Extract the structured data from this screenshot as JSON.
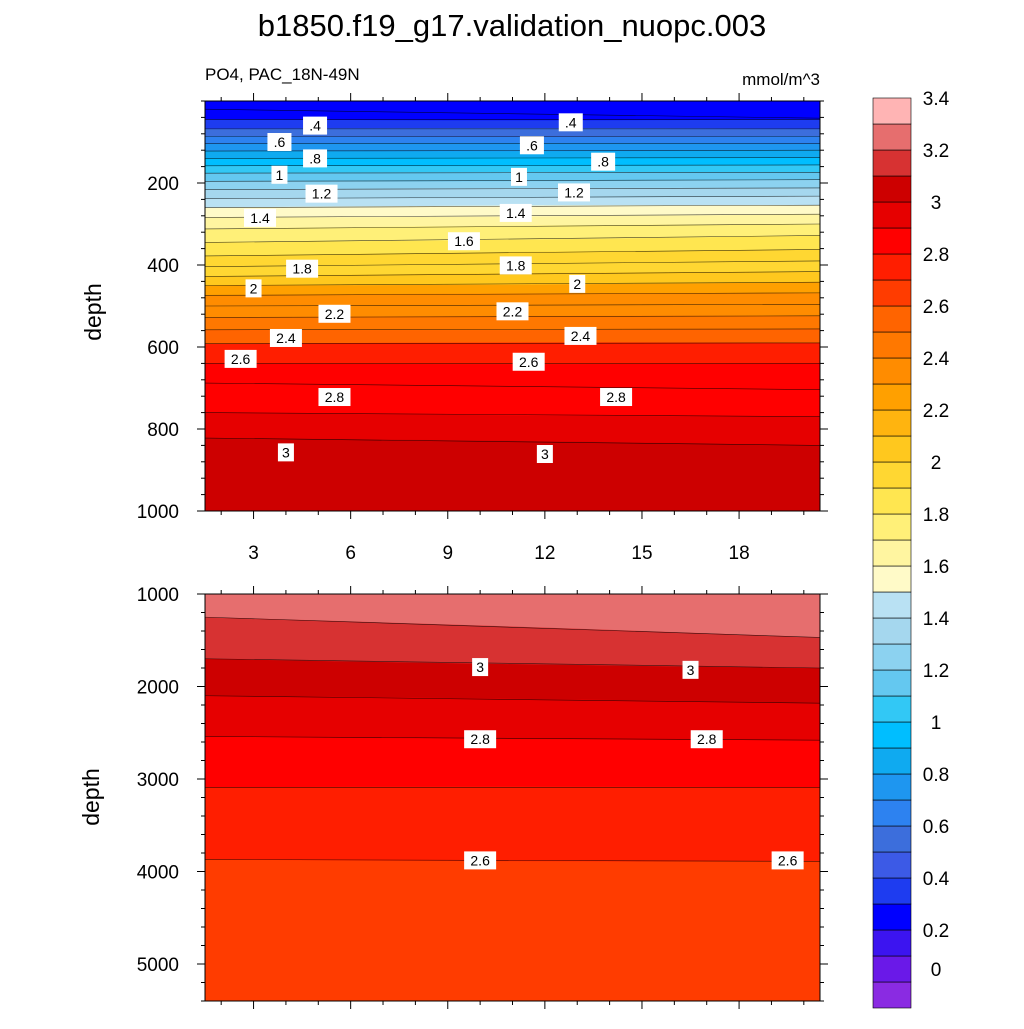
{
  "title": "b1850.f19_g17.validation_nuopc.003",
  "left_subtitle": "PO4, PAC_18N-49N",
  "right_subtitle": "mmol/m^3",
  "chart_data": [
    {
      "type": "heatmap",
      "panel": "upper",
      "title": "",
      "xlabel": "",
      "ylabel": "depth",
      "xlim": [
        1.5,
        20.5
      ],
      "ylim": [
        1000,
        0
      ],
      "x_ticks": [
        "3",
        "6",
        "9",
        "12",
        "15",
        "18"
      ],
      "x_tick_values": [
        3,
        6,
        9,
        12,
        15,
        18
      ],
      "y_ticks": [
        "200",
        "400",
        "600",
        "800",
        "1000"
      ],
      "y_tick_values": [
        200,
        400,
        600,
        800,
        1000
      ],
      "contour_interval": 0.1,
      "contour_depths": [
        {
          "level": 0.2,
          "left": 20,
          "right": 42
        },
        {
          "level": 0.3,
          "left": 45,
          "right": 45
        },
        {
          "level": 0.4,
          "left": 68,
          "right": 68
        },
        {
          "level": 0.5,
          "left": 86,
          "right": 86
        },
        {
          "level": 0.6,
          "left": 104,
          "right": 104
        },
        {
          "level": 0.7,
          "left": 122,
          "right": 120
        },
        {
          "level": 0.8,
          "left": 140,
          "right": 138
        },
        {
          "level": 0.9,
          "left": 158,
          "right": 156
        },
        {
          "level": 1.0,
          "left": 176,
          "right": 174
        },
        {
          "level": 1.1,
          "left": 196,
          "right": 192
        },
        {
          "level": 1.2,
          "left": 216,
          "right": 212
        },
        {
          "level": 1.3,
          "left": 238,
          "right": 232
        },
        {
          "level": 1.4,
          "left": 260,
          "right": 254
        },
        {
          "level": 1.5,
          "left": 284,
          "right": 276
        },
        {
          "level": 1.6,
          "left": 312,
          "right": 300
        },
        {
          "level": 1.7,
          "left": 345,
          "right": 328
        },
        {
          "level": 1.8,
          "left": 378,
          "right": 362
        },
        {
          "level": 1.9,
          "left": 404,
          "right": 390
        },
        {
          "level": 2.0,
          "left": 428,
          "right": 416
        },
        {
          "level": 2.1,
          "left": 450,
          "right": 442
        },
        {
          "level": 2.2,
          "left": 474,
          "right": 468
        },
        {
          "level": 2.3,
          "left": 500,
          "right": 496
        },
        {
          "level": 2.4,
          "left": 528,
          "right": 524
        },
        {
          "level": 2.5,
          "left": 558,
          "right": 556
        },
        {
          "level": 2.6,
          "left": 592,
          "right": 590
        },
        {
          "level": 2.7,
          "left": 640,
          "right": 640
        },
        {
          "level": 2.8,
          "left": 688,
          "right": 704
        },
        {
          "level": 2.9,
          "left": 760,
          "right": 770
        },
        {
          "level": 3.0,
          "left": 822,
          "right": 840
        }
      ],
      "contour_labels": [
        {
          "text": ".4",
          "x": 4.9,
          "y": 60
        },
        {
          "text": ".4",
          "x": 12.8,
          "y": 52
        },
        {
          "text": ".6",
          "x": 3.8,
          "y": 100
        },
        {
          "text": ".6",
          "x": 11.6,
          "y": 108
        },
        {
          "text": ".8",
          "x": 4.9,
          "y": 140
        },
        {
          "text": ".8",
          "x": 13.8,
          "y": 148
        },
        {
          "text": "1",
          "x": 3.8,
          "y": 180
        },
        {
          "text": "1",
          "x": 11.2,
          "y": 185
        },
        {
          "text": "1.2",
          "x": 5.1,
          "y": 226
        },
        {
          "text": "1.2",
          "x": 12.9,
          "y": 223
        },
        {
          "text": "1.4",
          "x": 3.2,
          "y": 285
        },
        {
          "text": "1.4",
          "x": 11.1,
          "y": 273
        },
        {
          "text": "1.6",
          "x": 9.5,
          "y": 342
        },
        {
          "text": "1.8",
          "x": 4.5,
          "y": 409
        },
        {
          "text": "1.8",
          "x": 11.1,
          "y": 401
        },
        {
          "text": "2",
          "x": 3.0,
          "y": 457
        },
        {
          "text": "2",
          "x": 13.0,
          "y": 446
        },
        {
          "text": "2.2",
          "x": 5.5,
          "y": 519
        },
        {
          "text": "2.2",
          "x": 11.0,
          "y": 513
        },
        {
          "text": "2.4",
          "x": 4.0,
          "y": 578
        },
        {
          "text": "2.4",
          "x": 13.1,
          "y": 573
        },
        {
          "text": "2.6",
          "x": 2.6,
          "y": 629
        },
        {
          "text": "2.6",
          "x": 11.5,
          "y": 636
        },
        {
          "text": "2.8",
          "x": 5.5,
          "y": 722
        },
        {
          "text": "2.8",
          "x": 14.2,
          "y": 722
        },
        {
          "text": "3",
          "x": 4.0,
          "y": 857
        },
        {
          "text": "3",
          "x": 12.0,
          "y": 861
        }
      ]
    },
    {
      "type": "heatmap",
      "panel": "lower",
      "title": "",
      "xlabel": "",
      "ylabel": "depth",
      "xlim": [
        1.5,
        20.5
      ],
      "ylim": [
        5400,
        1000
      ],
      "y_ticks": [
        "1000",
        "2000",
        "3000",
        "4000",
        "5000"
      ],
      "y_tick_values": [
        1000,
        2000,
        3000,
        4000,
        5000
      ],
      "contour_interval": 0.1,
      "contour_depths": [
        {
          "level": 3.1,
          "left": 1250,
          "right": 1470
        },
        {
          "level": 3.0,
          "left": 1700,
          "right": 1800
        },
        {
          "level": 2.9,
          "left": 2100,
          "right": 2180
        },
        {
          "level": 2.8,
          "left": 2540,
          "right": 2580
        },
        {
          "level": 2.7,
          "left": 3090,
          "right": 3090
        },
        {
          "level": 2.6,
          "left": 3870,
          "right": 3890
        }
      ],
      "contour_labels": [
        {
          "text": "3",
          "x": 10.0,
          "y": 1790
        },
        {
          "text": "3",
          "x": 16.5,
          "y": 1820
        },
        {
          "text": "2.8",
          "x": 10.0,
          "y": 2570
        },
        {
          "text": "2.8",
          "x": 17.0,
          "y": 2570
        },
        {
          "text": "2.6",
          "x": 10.0,
          "y": 3880
        },
        {
          "text": "2.6",
          "x": 19.5,
          "y": 3880
        }
      ]
    }
  ],
  "colorbar": {
    "tick_labels": [
      "0",
      "0.2",
      "0.4",
      "0.6",
      "0.8",
      "1",
      "1.2",
      "1.4",
      "1.6",
      "1.8",
      "2",
      "2.2",
      "2.4",
      "2.6",
      "2.8",
      "3",
      "3.2",
      "3.4"
    ],
    "tick_values": [
      0,
      0.2,
      0.4,
      0.6,
      0.8,
      1.0,
      1.2,
      1.4,
      1.6,
      1.8,
      2.0,
      2.2,
      2.4,
      2.6,
      2.8,
      3.0,
      3.2,
      3.4
    ],
    "levels_from": -0.1,
    "level_step": 0.1,
    "colors": [
      "#8a2be2",
      "#6a19e8",
      "#3c14f0",
      "#0000ff",
      "#1e3cf0",
      "#3c5ae6",
      "#3c6edc",
      "#2d82f0",
      "#1e96f0",
      "#0faaf0",
      "#00beff",
      "#32c8f5",
      "#64c8f0",
      "#8cd2f0",
      "#a5d7ee",
      "#b9e1f3",
      "#fffac8",
      "#fff5a0",
      "#fff078",
      "#ffe650",
      "#ffd732",
      "#ffc81e",
      "#ffb40f",
      "#ffa000",
      "#ff8c00",
      "#ff7800",
      "#ff6400",
      "#ff3c00",
      "#ff1e00",
      "#ff0000",
      "#e60000",
      "#cd0000",
      "#d73232",
      "#e66e6e",
      "#ffb4b4"
    ]
  }
}
